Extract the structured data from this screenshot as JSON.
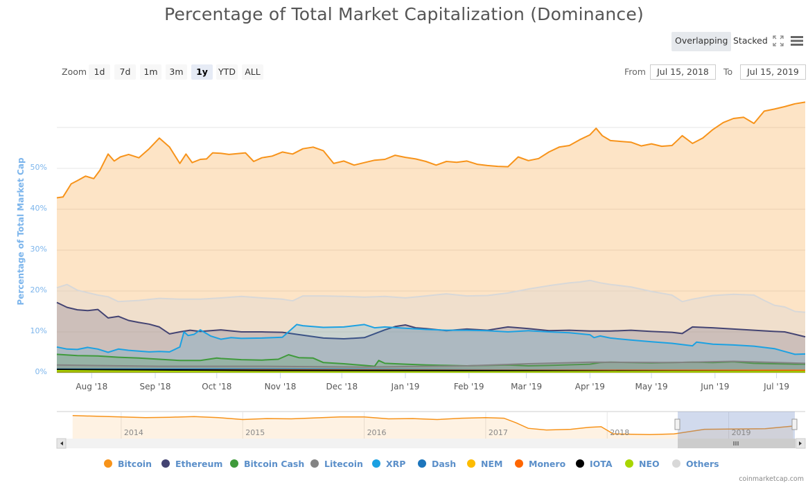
{
  "title": "Percentage of Total Market Capitalization (Dominance)",
  "view_modes": [
    {
      "label": "Overlapping",
      "active": true
    },
    {
      "label": "Stacked",
      "active": false
    }
  ],
  "icons": {
    "fullscreen": "fullscreen-icon",
    "menu": "hamburger-menu-icon"
  },
  "range_selector": {
    "zoom_label": "Zoom",
    "buttons": [
      {
        "label": "1d",
        "active": false
      },
      {
        "label": "7d",
        "active": false
      },
      {
        "label": "1m",
        "active": false
      },
      {
        "label": "3m",
        "active": false
      },
      {
        "label": "1y",
        "active": true
      },
      {
        "label": "YTD",
        "active": false
      },
      {
        "label": "ALL",
        "active": false
      }
    ],
    "from_label": "From",
    "from_value": "Jul 15, 2018",
    "to_label": "To",
    "to_value": "Jul 15, 2019"
  },
  "navigator": {
    "year_labels": [
      "2014",
      "2015",
      "2016",
      "2017",
      "2018",
      "2019"
    ],
    "selected_range": [
      "Jul 15, 2018",
      "Jul 15, 2019"
    ]
  },
  "credits": "coinmarketcap.com",
  "chart_data": {
    "type": "area",
    "title": "Percentage of Total Market Capitalization (Dominance)",
    "xlabel": "",
    "ylabel": "Percentage of Total Market Cap",
    "x_unit": "days since Jul 15, 2018",
    "xlim": [
      0,
      365
    ],
    "ylim": [
      0,
      60
    ],
    "yticks": [
      0,
      10,
      20,
      30,
      40,
      50
    ],
    "ytick_labels": [
      "0%",
      "10%",
      "20%",
      "30%",
      "40%",
      "50%"
    ],
    "xticks": [
      17,
      48,
      78,
      109,
      139,
      170,
      201,
      229,
      260,
      290,
      321,
      351
    ],
    "xtick_labels": [
      "Aug '18",
      "Sep '18",
      "Oct '18",
      "Nov '18",
      "Dec '18",
      "Jan '19",
      "Feb '19",
      "Mar '19",
      "Apr '19",
      "May '19",
      "Jun '19",
      "Jul '19"
    ],
    "grid": true,
    "legend_position": "bottom",
    "series": [
      {
        "name": "Bitcoin",
        "color": "#f7931a",
        "x": [
          0,
          3,
          7,
          10,
          14,
          18,
          21,
          25,
          28,
          31,
          35,
          40,
          45,
          50,
          55,
          60,
          63,
          66,
          70,
          73,
          76,
          80,
          84,
          88,
          92,
          96,
          100,
          105,
          110,
          115,
          120,
          125,
          130,
          135,
          140,
          145,
          150,
          155,
          160,
          165,
          170,
          175,
          180,
          185,
          190,
          195,
          200,
          205,
          210,
          215,
          220,
          225,
          230,
          235,
          240,
          245,
          250,
          255,
          260,
          263,
          266,
          270,
          275,
          280,
          285,
          290,
          295,
          300,
          303,
          305,
          310,
          315,
          320,
          325,
          330,
          335,
          340,
          345,
          350,
          355,
          360,
          365
        ],
        "y": [
          42.8,
          43,
          46.2,
          47,
          48.1,
          47.5,
          49.5,
          53.5,
          51.8,
          52.8,
          53.4,
          52.6,
          54.8,
          57.4,
          55.2,
          51.2,
          53.5,
          51.4,
          52.2,
          52.3,
          53.8,
          53.7,
          53.4,
          53.6,
          53.8,
          51.7,
          52.6,
          53,
          54,
          53.5,
          54.8,
          55.2,
          54.3,
          51.2,
          51.8,
          50.8,
          51.4,
          52,
          52.2,
          53.2,
          52.7,
          52.3,
          51.7,
          50.8,
          51.7,
          51.5,
          51.8,
          51,
          50.7,
          50.5,
          50.4,
          52.8,
          51.9,
          52.4,
          54,
          55.2,
          55.6,
          57,
          58.2,
          59.8,
          58,
          56.8,
          56.6,
          56.4,
          55.5,
          56,
          55.4,
          55.6,
          57,
          58,
          56.1,
          57.4,
          59.5,
          61.2,
          62.2,
          62.5,
          61,
          64,
          64.5,
          65.1,
          65.8,
          66.2
        ]
      },
      {
        "name": "Others",
        "color": "#d8d8d8",
        "x": [
          0,
          5,
          10,
          15,
          20,
          25,
          30,
          40,
          50,
          60,
          70,
          80,
          90,
          100,
          110,
          115,
          120,
          130,
          140,
          150,
          160,
          170,
          180,
          190,
          200,
          210,
          220,
          230,
          240,
          250,
          255,
          260,
          265,
          270,
          280,
          290,
          300,
          305,
          310,
          320,
          330,
          340,
          345,
          350,
          355,
          360,
          365
        ],
        "y": [
          20.8,
          21.6,
          20.2,
          19.6,
          19,
          18.6,
          17.4,
          17.7,
          18.2,
          18,
          18,
          18.3,
          18.7,
          18.3,
          18,
          17.6,
          18.8,
          18.8,
          18.7,
          18.5,
          18.7,
          18.3,
          18.8,
          19.3,
          18.8,
          18.9,
          19.5,
          20.5,
          21.3,
          22,
          22.2,
          22.6,
          22,
          21.6,
          21,
          19.9,
          19,
          17.4,
          18,
          18.9,
          19.2,
          19,
          17.7,
          16.5,
          16.1,
          15,
          14.8
        ]
      },
      {
        "name": "Ethereum",
        "color": "#434372",
        "x": [
          0,
          5,
          10,
          15,
          20,
          25,
          30,
          35,
          40,
          45,
          50,
          55,
          60,
          65,
          70,
          80,
          90,
          100,
          110,
          120,
          130,
          140,
          150,
          160,
          165,
          170,
          175,
          180,
          190,
          200,
          210,
          220,
          230,
          240,
          250,
          260,
          270,
          280,
          290,
          300,
          305,
          310,
          320,
          330,
          340,
          350,
          355,
          360,
          365
        ],
        "y": [
          17.2,
          16,
          15.4,
          15.2,
          15.5,
          13.4,
          13.8,
          12.8,
          12.3,
          11.9,
          11.2,
          9.5,
          10,
          10.4,
          10.1,
          10.5,
          10,
          10,
          9.9,
          9.2,
          8.5,
          8.3,
          8.6,
          10.5,
          11.3,
          11.7,
          11,
          10.8,
          10.3,
          10.7,
          10.4,
          11.2,
          10.8,
          10.3,
          10.4,
          10.2,
          10.2,
          10.4,
          10.1,
          9.9,
          9.6,
          11.2,
          11,
          10.7,
          10.4,
          10.1,
          10,
          9.4,
          8.8
        ]
      },
      {
        "name": "XRP",
        "color": "#1ba1e2",
        "x": [
          0,
          5,
          10,
          15,
          20,
          25,
          30,
          35,
          40,
          45,
          50,
          55,
          60,
          62,
          64,
          67,
          70,
          75,
          80,
          85,
          90,
          100,
          110,
          117,
          120,
          130,
          140,
          150,
          155,
          160,
          170,
          180,
          190,
          200,
          210,
          220,
          230,
          240,
          250,
          260,
          262,
          265,
          270,
          280,
          290,
          300,
          310,
          312,
          320,
          330,
          340,
          350,
          355,
          360,
          365
        ],
        "y": [
          6.3,
          5.8,
          5.7,
          6.2,
          5.8,
          5,
          5.8,
          5.5,
          5.3,
          5.1,
          5.2,
          5.1,
          6.3,
          10,
          9.1,
          9.4,
          10.5,
          9,
          8.2,
          8.6,
          8.4,
          8.5,
          8.7,
          11.8,
          11.5,
          11.1,
          11.2,
          11.8,
          11,
          11.2,
          10.9,
          10.6,
          10.4,
          10.4,
          10.3,
          10,
          10.3,
          10,
          9.8,
          9.3,
          8.6,
          9,
          8.5,
          8,
          7.6,
          7.2,
          6.6,
          7.5,
          7,
          6.8,
          6.5,
          5.9,
          5.2,
          4.5,
          4.6
        ]
      },
      {
        "name": "Bitcoin Cash",
        "color": "#3f9a3b",
        "x": [
          0,
          10,
          20,
          30,
          40,
          50,
          60,
          70,
          78,
          80,
          90,
          100,
          108,
          113,
          118,
          125,
          130,
          140,
          150,
          155,
          157,
          160,
          170,
          180,
          190,
          200,
          210,
          220,
          230,
          240,
          260,
          265,
          270,
          290,
          300,
          310,
          320,
          330,
          340,
          350,
          360,
          365
        ],
        "y": [
          4.5,
          4.2,
          4.1,
          3.8,
          3.6,
          3.3,
          3,
          3,
          3.6,
          3.5,
          3.2,
          3.1,
          3.3,
          4.4,
          3.7,
          3.6,
          2.5,
          2.2,
          1.8,
          1.6,
          3,
          2.3,
          2.1,
          1.9,
          1.8,
          1.7,
          1.8,
          1.9,
          1.7,
          1.8,
          2.1,
          2.5,
          2.6,
          2.4,
          2.5,
          2.6,
          2.5,
          2.7,
          2.3,
          2.2,
          2.1,
          2.1
        ]
      },
      {
        "name": "Litecoin",
        "color": "#838383",
        "x": [
          0,
          50,
          100,
          150,
          200,
          230,
          260,
          300,
          330,
          365
        ],
        "y": [
          1.9,
          1.6,
          1.6,
          1.4,
          1.7,
          2.2,
          2.6,
          2.5,
          2.8,
          2.3
        ]
      },
      {
        "name": "Dash",
        "color": "#1c75bc",
        "x": [
          0,
          100,
          200,
          300,
          365
        ],
        "y": [
          0.9,
          0.9,
          0.7,
          0.6,
          0.5
        ]
      },
      {
        "name": "Monero",
        "color": "#ff6600",
        "x": [
          0,
          100,
          200,
          300,
          365
        ],
        "y": [
          0.6,
          0.7,
          0.6,
          0.6,
          0.6
        ]
      },
      {
        "name": "NEM",
        "color": "#fdbc00",
        "x": [
          0,
          100,
          200,
          300,
          365
        ],
        "y": [
          0.4,
          0.3,
          0.25,
          0.2,
          0.2
        ]
      },
      {
        "name": "IOTA",
        "color": "#000000",
        "x": [
          0,
          100,
          200,
          300,
          365
        ],
        "y": [
          0.8,
          0.6,
          0.5,
          0.4,
          0.3
        ]
      },
      {
        "name": "NEO",
        "color": "#a8d600",
        "x": [
          0,
          100,
          200,
          300,
          365
        ],
        "y": [
          0.5,
          0.2,
          0.2,
          0.3,
          0.3
        ]
      }
    ],
    "legend": [
      "Bitcoin",
      "Ethereum",
      "Bitcoin Cash",
      "Litecoin",
      "XRP",
      "Dash",
      "NEM",
      "Monero",
      "IOTA",
      "NEO",
      "Others"
    ],
    "legend_colors": [
      "#f7931a",
      "#434372",
      "#3f9a3b",
      "#838383",
      "#1ba1e2",
      "#1c75bc",
      "#fdbc00",
      "#ff6600",
      "#000000",
      "#a8d600",
      "#d8d8d8"
    ],
    "navigator_series": {
      "name": "Bitcoin",
      "x_unit": "year",
      "x": [
        2013.6,
        2013.8,
        2014.0,
        2014.2,
        2014.4,
        2014.6,
        2014.8,
        2015.0,
        2015.2,
        2015.4,
        2015.6,
        2015.8,
        2016.0,
        2016.2,
        2016.4,
        2016.6,
        2016.8,
        2017.0,
        2017.15,
        2017.25,
        2017.35,
        2017.5,
        2017.7,
        2017.85,
        2017.95,
        2018.05,
        2018.2,
        2018.35,
        2018.55,
        2018.8,
        2019.0,
        2019.3,
        2019.53
      ],
      "y": [
        94,
        92,
        90,
        88,
        89,
        91,
        88,
        82,
        85,
        84,
        87,
        90,
        90,
        84,
        85,
        82,
        86,
        88,
        86,
        72,
        55,
        50,
        52,
        58,
        60,
        38,
        37,
        36,
        38,
        52,
        53,
        54,
        62
      ]
    }
  }
}
